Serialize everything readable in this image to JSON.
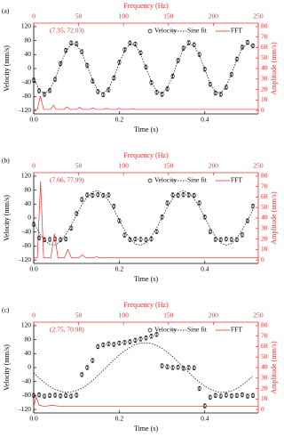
{
  "chart_data": [
    {
      "type": "line",
      "panel_label": "(a)",
      "annotation": "(7.35, 72.03)",
      "x_label": "Time (s)",
      "y_label": "Velocity (mm/s)",
      "x2_label": "Frequency (Hz)",
      "y2_label": "Amplitude (mm/s)",
      "xlim": [
        0,
        0.525
      ],
      "xticks": [
        {
          "value": 0,
          "label": "0.0"
        },
        0.2,
        0.4
      ],
      "ylim": [
        -130,
        130
      ],
      "yticks": [
        -120,
        -80,
        -40,
        0,
        40,
        80,
        120
      ],
      "x2lim": [
        0,
        250
      ],
      "x2ticks": [
        0,
        50,
        100,
        150,
        200,
        250
      ],
      "y2lim": [
        -3.3,
        83.3
      ],
      "y2ticks": [
        0,
        10,
        20,
        30,
        40,
        50,
        60,
        70,
        80
      ],
      "x": [
        0,
        0.0125,
        0.025,
        0.0375,
        0.05,
        0.0625,
        0.075,
        0.0875,
        0.1,
        0.1125,
        0.125,
        0.1375,
        0.15,
        0.1625,
        0.175,
        0.1875,
        0.2,
        0.2125,
        0.225,
        0.2375,
        0.25,
        0.2625,
        0.275,
        0.2875,
        0.3,
        0.3125,
        0.325,
        0.3375,
        0.35,
        0.3625,
        0.375,
        0.3875,
        0.4,
        0.4125,
        0.425,
        0.4375,
        0.45,
        0.4625,
        0.475,
        0.4875,
        0.5,
        0.5125
      ],
      "series": [
        {
          "name": "Velocity",
          "color": "#000000",
          "error": 6,
          "values": [
            -33,
            -64,
            -74,
            -63,
            -31,
            14,
            52,
            73,
            71,
            48,
            9,
            -36,
            -66,
            -75,
            -61,
            -27,
            18,
            54,
            73,
            70,
            45,
            4,
            -40,
            -68,
            -74,
            -58,
            -22,
            23,
            58,
            74,
            68,
            40,
            -2,
            -45,
            -70,
            -74,
            -54,
            -17,
            27,
            61,
            75,
            65
          ]
        },
        {
          "name": "Sine fit",
          "color": "#000000",
          "values": [
            -29,
            -60,
            -72,
            -60,
            -29,
            12,
            48,
            70,
            68,
            45,
            7,
            -33,
            -63,
            -72,
            -58,
            -25,
            16,
            51,
            70,
            67,
            42,
            2,
            -38,
            -65,
            -71,
            -55,
            -20,
            21,
            55,
            71,
            65,
            37,
            -3,
            -42,
            -67,
            -71,
            -51,
            -15,
            25,
            58,
            72,
            62
          ]
        },
        {
          "name": "FFT",
          "color": "#e8312f",
          "axis": "y2",
          "x": [
            0,
            4,
            7.35,
            11,
            19,
            22,
            25,
            34,
            37,
            40,
            48,
            51,
            54,
            63,
            66,
            69,
            78,
            81,
            84,
            92,
            95,
            98,
            107,
            110,
            113,
            125,
            250
          ],
          "values": [
            1,
            1,
            14,
            1,
            1,
            5,
            1,
            1,
            3.5,
            1,
            1,
            3,
            1,
            1,
            2.5,
            1,
            1,
            2,
            1,
            1,
            2,
            1,
            1,
            1.8,
            1,
            1,
            1
          ]
        }
      ]
    },
    {
      "type": "line",
      "panel_label": "(b)",
      "annotation": "(7.66, 77.99)",
      "x_label": "Time (s)",
      "y_label": "Velocity (mm/s)",
      "x2_label": "Frequency (Hz)",
      "y2_label": "Amplitude (mm/s)",
      "xlim": [
        0,
        0.525
      ],
      "xticks": [
        {
          "value": 0,
          "label": "0.0"
        },
        0.2,
        0.4
      ],
      "ylim": [
        -130,
        130
      ],
      "yticks": [
        -120,
        -80,
        -40,
        0,
        40,
        80,
        120
      ],
      "x2lim": [
        0,
        250
      ],
      "x2ticks": [
        0,
        50,
        100,
        150,
        200,
        250
      ],
      "y2lim": [
        -3.3,
        83.3
      ],
      "y2ticks": [
        0,
        10,
        20,
        30,
        40,
        50,
        60,
        70,
        80
      ],
      "x": [
        0,
        0.0125,
        0.025,
        0.0375,
        0.05,
        0.0625,
        0.075,
        0.0875,
        0.1,
        0.1125,
        0.125,
        0.1375,
        0.15,
        0.1625,
        0.175,
        0.1875,
        0.2,
        0.2125,
        0.225,
        0.2375,
        0.25,
        0.2625,
        0.275,
        0.2875,
        0.3,
        0.3125,
        0.325,
        0.3375,
        0.35,
        0.3625,
        0.375,
        0.3875,
        0.4,
        0.4125,
        0.425,
        0.4375,
        0.45,
        0.4625,
        0.475,
        0.4875,
        0.5,
        0.5125
      ],
      "series": [
        {
          "name": "Velocity",
          "color": "#000000",
          "error": 6,
          "values": [
            -18,
            -57,
            -62,
            -61,
            -60,
            -62,
            -60,
            -29,
            13,
            53,
            66,
            65,
            67,
            65,
            66,
            34,
            -8,
            -49,
            -62,
            -60,
            -61,
            -62,
            -60,
            -39,
            3,
            43,
            66,
            65,
            67,
            66,
            65,
            43,
            3,
            -39,
            -61,
            -62,
            -60,
            -61,
            -62,
            -48,
            -8,
            34
          ]
        },
        {
          "name": "Sine fit",
          "color": "#000000",
          "values": [
            -13,
            -41,
            -63,
            -76,
            -77,
            -67,
            -47,
            -21,
            9,
            38,
            61,
            75,
            78,
            69,
            50,
            24,
            -6,
            -35,
            -58,
            -74,
            -78,
            -71,
            -53,
            -28,
            2,
            31,
            56,
            72,
            78,
            72,
            56,
            31,
            2,
            -28,
            -53,
            -71,
            -78,
            -73,
            -58,
            -34,
            -6,
            24
          ]
        },
        {
          "name": "FFT",
          "color": "#e8312f",
          "axis": "y2",
          "x": [
            0,
            4,
            7.66,
            11,
            19,
            23,
            27,
            34,
            38,
            42,
            50,
            54,
            58,
            66,
            70,
            74,
            82,
            86,
            90,
            98,
            102,
            106,
            114,
            118,
            122,
            130,
            250
          ],
          "values": [
            2,
            2,
            75,
            2,
            2,
            25,
            2,
            2,
            10,
            2,
            2,
            5,
            2,
            2,
            3,
            2,
            2,
            2.5,
            2,
            2,
            2,
            2,
            2,
            2,
            2,
            2,
            2
          ]
        }
      ]
    },
    {
      "type": "line",
      "panel_label": "(c)",
      "annotation": "(2.75, 70.98)",
      "x_label": "Time (s)",
      "y_label": "Velocity (mm/s)",
      "x2_label": "Frequency (Hz)",
      "y2_label": "Amplitude (mm/s)",
      "xlim": [
        0,
        0.525
      ],
      "xticks": [
        {
          "value": 0,
          "label": "0.0"
        },
        0.2,
        0.4
      ],
      "ylim": [
        -130,
        130
      ],
      "yticks": [
        -120,
        -80,
        -40,
        0,
        40,
        80,
        120
      ],
      "x2lim": [
        0,
        250
      ],
      "x2ticks": [
        0,
        50,
        100,
        150,
        200,
        250
      ],
      "y2lim": [
        -3.3,
        83.3
      ],
      "y2ticks": [
        0,
        10,
        20,
        30,
        40,
        50,
        60,
        70,
        80
      ],
      "x": [
        0,
        0.0125,
        0.025,
        0.0375,
        0.05,
        0.0625,
        0.075,
        0.0875,
        0.1,
        0.1125,
        0.125,
        0.1375,
        0.15,
        0.1625,
        0.175,
        0.1875,
        0.2,
        0.2125,
        0.225,
        0.2375,
        0.25,
        0.2625,
        0.275,
        0.2875,
        0.3,
        0.3125,
        0.325,
        0.3375,
        0.35,
        0.3625,
        0.375,
        0.3875,
        0.4,
        0.4125,
        0.425,
        0.4375,
        0.45,
        0.4625,
        0.475,
        0.4875,
        0.5,
        0.5125
      ],
      "series": [
        {
          "name": "Velocity",
          "color": "#000000",
          "error": 6,
          "values": [
            -80,
            -78,
            -82,
            -80,
            -79,
            -81,
            -80,
            -82,
            -79,
            -20,
            0,
            20,
            60,
            65,
            68,
            66,
            70,
            72,
            74,
            78,
            82,
            85,
            90,
            95,
            5,
            2,
            0,
            1,
            -2,
            0,
            -1,
            -60,
            -110,
            -85,
            -80,
            -82,
            -79,
            -81,
            -80,
            -78,
            -82,
            -80
          ]
        },
        {
          "name": "Sine fit",
          "color": "#000000",
          "values": [
            -15,
            -30,
            -43,
            -54,
            -63,
            -68,
            -71,
            -70,
            -66,
            -59,
            -49,
            -37,
            -23,
            -8,
            7,
            22,
            36,
            48,
            58,
            66,
            70,
            71,
            69,
            63,
            55,
            44,
            31,
            16,
            1,
            -14,
            -29,
            -42,
            -53,
            -62,
            -68,
            -71,
            -70,
            -67,
            -60,
            -50,
            -38,
            -24
          ]
        },
        {
          "name": "FFT",
          "color": "#e8312f",
          "axis": "y2",
          "x": [
            0,
            2.75,
            6,
            12,
            20,
            30,
            50,
            80,
            120,
            160,
            200,
            250
          ],
          "values": [
            3,
            12,
            4,
            3,
            4,
            3,
            3,
            3,
            3,
            3,
            3,
            3
          ]
        }
      ]
    }
  ]
}
